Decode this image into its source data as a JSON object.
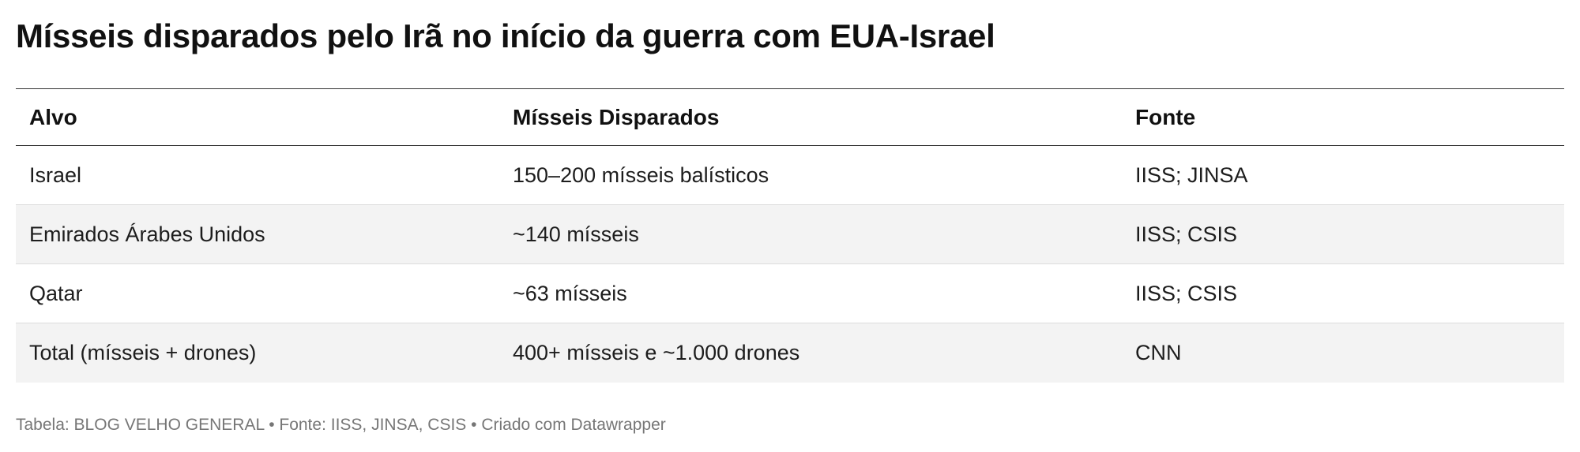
{
  "title": "Mísseis disparados pelo Irã no início da guerra com EUA-Israel",
  "chart_data": {
    "type": "table",
    "title": "Mísseis disparados pelo Irã no início da guerra com EUA-Israel",
    "columns": [
      "Alvo",
      "Mísseis Disparados",
      "Fonte"
    ],
    "rows": [
      [
        "Israel",
        "150–200 mísseis balísticos",
        "IISS; JINSA"
      ],
      [
        "Emirados Árabes Unidos",
        "~140 mísseis",
        "IISS; CSIS"
      ],
      [
        "Qatar",
        "~63 mísseis",
        "IISS; CSIS"
      ],
      [
        "Total (mísseis + drones)",
        "400+ mísseis e ~1.000 drones",
        "CNN"
      ]
    ]
  },
  "footer": "Tabela: BLOG VELHO GENERAL • Fonte: IISS, JINSA, CSIS • Criado com Datawrapper",
  "colors": {
    "text": "#181818",
    "zebra_row": "#f3f3f3",
    "footer_text": "#767676",
    "rule": "#333333"
  }
}
